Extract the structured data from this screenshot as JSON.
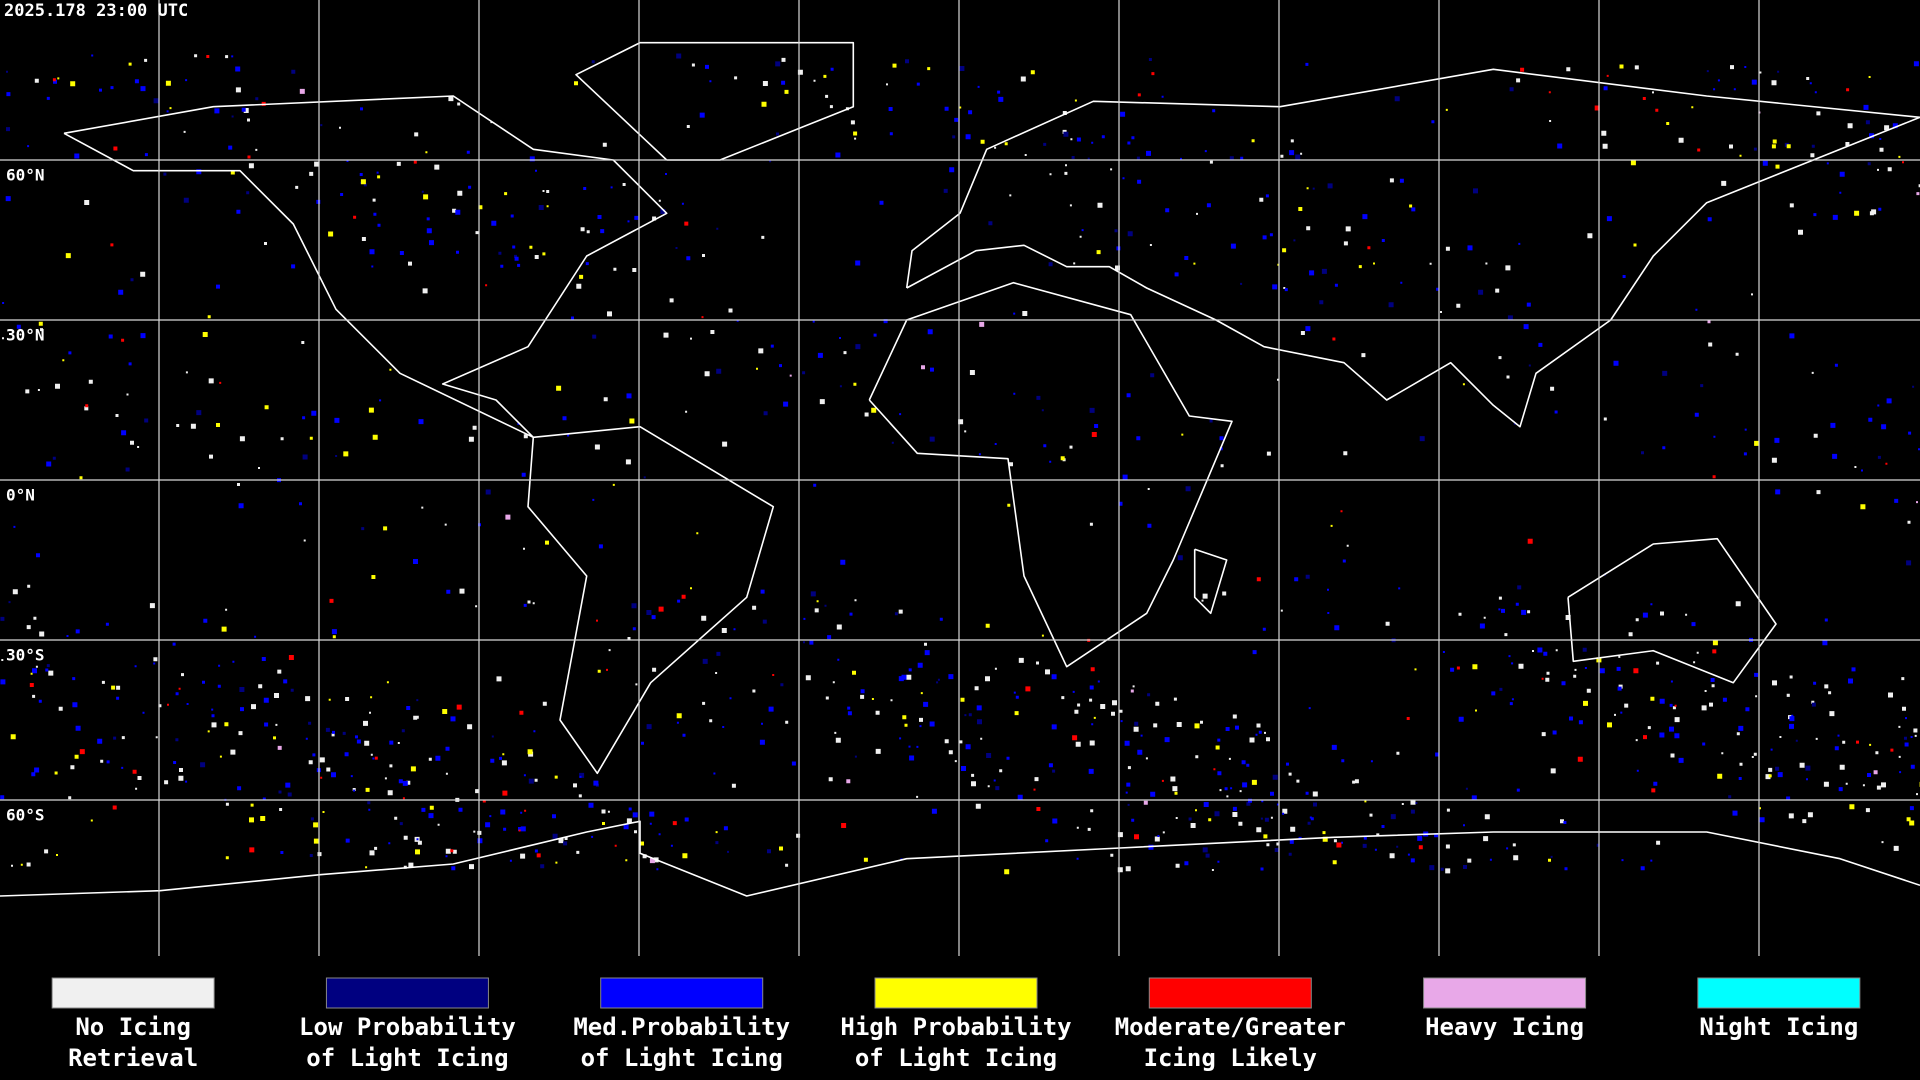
{
  "timestamp": "2025.178 23:00 UTC",
  "lat_labels": [
    "60°N",
    "30°N",
    "0°N",
    "30°S",
    "60°S"
  ],
  "legend": [
    {
      "color": "#f0f0f0",
      "lines": [
        "No Icing",
        "Retrieval"
      ]
    },
    {
      "color": "#000080",
      "lines": [
        "Low Probability",
        "of Light Icing"
      ]
    },
    {
      "color": "#0000ff",
      "lines": [
        "Med.Probability",
        "of Light Icing"
      ]
    },
    {
      "color": "#ffff00",
      "lines": [
        "High Probability",
        "of Light Icing"
      ]
    },
    {
      "color": "#ff0000",
      "lines": [
        "Moderate/Greater",
        "Icing Likely"
      ]
    },
    {
      "color": "#e8a8e8",
      "lines": [
        "Heavy Icing"
      ]
    },
    {
      "color": "#00ffff",
      "lines": [
        "Night Icing"
      ]
    }
  ]
}
